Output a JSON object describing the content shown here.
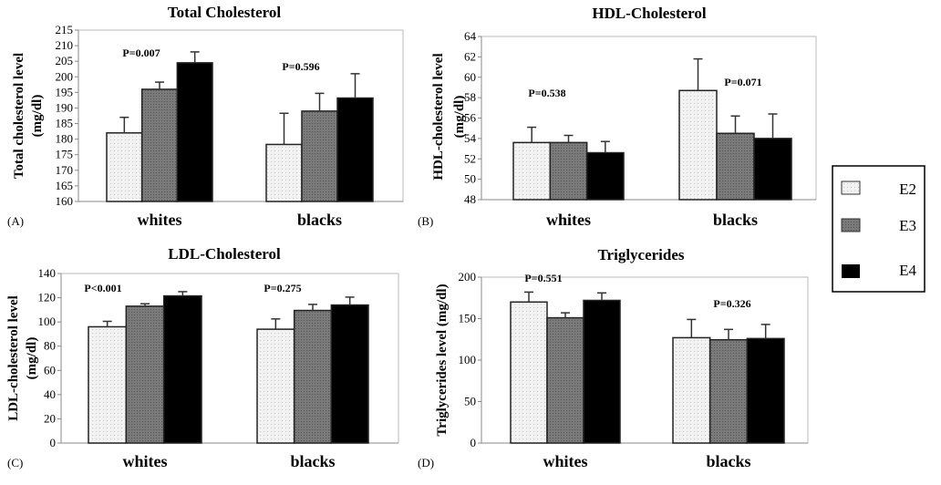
{
  "chart_data": [
    {
      "type": "bar",
      "panel_label": "(A)",
      "title": "Total Cholesterol",
      "ylabel": [
        "Total cholesterol level",
        "(mg/dl)"
      ],
      "categories": [
        "whites",
        "blacks"
      ],
      "ylim": [
        160,
        215
      ],
      "ytick_step": 5,
      "grid": false,
      "series": [
        {
          "name": "E2",
          "values": [
            182,
            178.3
          ],
          "errors": [
            5,
            10
          ]
        },
        {
          "name": "E3",
          "values": [
            196,
            189
          ],
          "errors": [
            2.3,
            5.7
          ]
        },
        {
          "name": "E4",
          "values": [
            204.5,
            193.2
          ],
          "errors": [
            3.5,
            7.8
          ]
        }
      ],
      "annotations": [
        "P=0.007",
        "P=0.596"
      ]
    },
    {
      "type": "bar",
      "panel_label": "(B)",
      "title": "HDL-Cholesterol",
      "ylabel": [
        "HDL-cholesterol level",
        "(mg/dl)"
      ],
      "categories": [
        "whites",
        "blacks"
      ],
      "ylim": [
        48,
        64
      ],
      "ytick_step": 2,
      "grid": false,
      "series": [
        {
          "name": "E2",
          "values": [
            53.6,
            58.7
          ],
          "errors": [
            1.5,
            3.1
          ]
        },
        {
          "name": "E3",
          "values": [
            53.6,
            54.5
          ],
          "errors": [
            0.7,
            1.7
          ]
        },
        {
          "name": "E4",
          "values": [
            52.6,
            54.0
          ],
          "errors": [
            1.1,
            2.4
          ]
        }
      ],
      "annotations": [
        "P=0.538",
        "P=0.071"
      ]
    },
    {
      "type": "bar",
      "panel_label": "(C)",
      "title": "LDL-Cholesterol",
      "ylabel": [
        "LDL-cholesterol level",
        "(mg/dl)"
      ],
      "categories": [
        "whites",
        "blacks"
      ],
      "ylim": [
        0,
        140
      ],
      "ytick_step": 20,
      "grid": false,
      "series": [
        {
          "name": "E2",
          "values": [
            96,
            94
          ],
          "errors": [
            4.5,
            8.5
          ]
        },
        {
          "name": "E3",
          "values": [
            113,
            109.5
          ],
          "errors": [
            2,
            5
          ]
        },
        {
          "name": "E4",
          "values": [
            121.5,
            114
          ],
          "errors": [
            3.5,
            6.5
          ]
        }
      ],
      "annotations": [
        "P<0.001",
        "P=0.275"
      ]
    },
    {
      "type": "bar",
      "panel_label": "(D)",
      "title": "Triglycerides",
      "ylabel": [
        "Triglycerides level (mg/dl)"
      ],
      "categories": [
        "whites",
        "blacks"
      ],
      "ylim": [
        0,
        200
      ],
      "ytick_step": 50,
      "grid": false,
      "series": [
        {
          "name": "E2",
          "values": [
            170,
            127
          ],
          "errors": [
            12,
            22
          ]
        },
        {
          "name": "E3",
          "values": [
            151,
            124.5
          ],
          "errors": [
            6,
            12.5
          ]
        },
        {
          "name": "E4",
          "values": [
            172,
            126
          ],
          "errors": [
            9,
            17
          ]
        }
      ],
      "annotations": [
        "P=0.551",
        "P=0.326"
      ]
    }
  ],
  "legend": {
    "placement": "right",
    "items": [
      {
        "label": "E2",
        "color": "#eeeeee",
        "pattern": "light-dotted"
      },
      {
        "label": "E3",
        "color": "#777777",
        "pattern": "gray-crosshatch"
      },
      {
        "label": "E4",
        "color": "#000000",
        "pattern": "solid"
      }
    ]
  }
}
